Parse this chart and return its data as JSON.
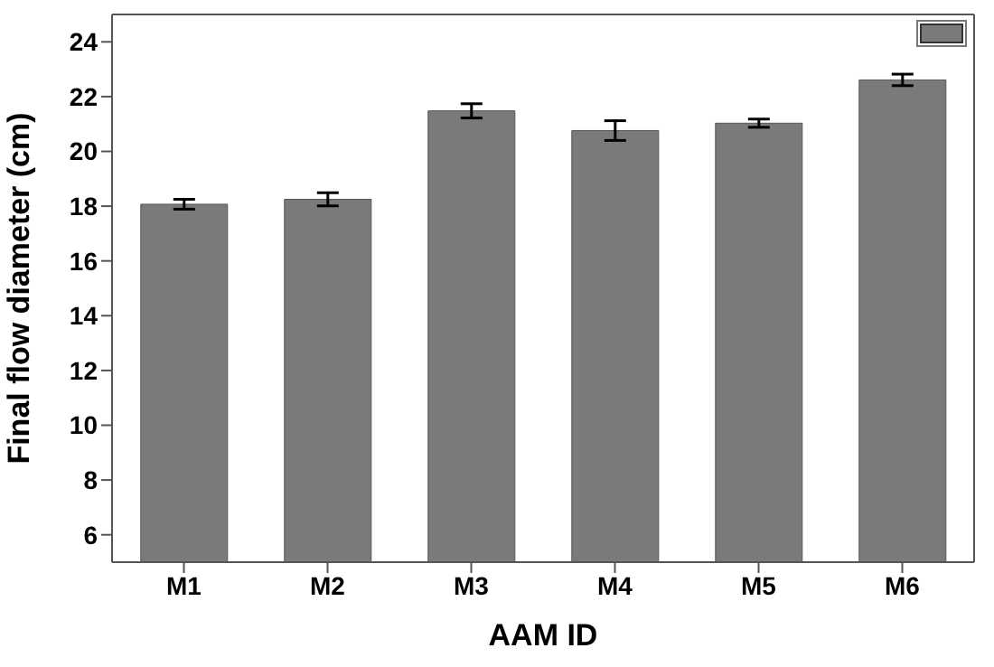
{
  "chart_data": {
    "type": "bar",
    "xlabel": "AAM ID",
    "ylabel": "Final flow diameter (cm)",
    "categories": [
      "M1",
      "M2",
      "M3",
      "M4",
      "M5",
      "M6"
    ],
    "series": [
      {
        "color": "#7a7a7a",
        "values": [
          18.07,
          18.25,
          21.48,
          20.76,
          21.03,
          22.61
        ],
        "errors": [
          0.18,
          0.24,
          0.26,
          0.36,
          0.15,
          0.21
        ]
      }
    ],
    "ylim": [
      5,
      25
    ],
    "yticks": [
      6,
      8,
      10,
      12,
      14,
      16,
      18,
      20,
      22,
      24
    ],
    "grid": false
  }
}
